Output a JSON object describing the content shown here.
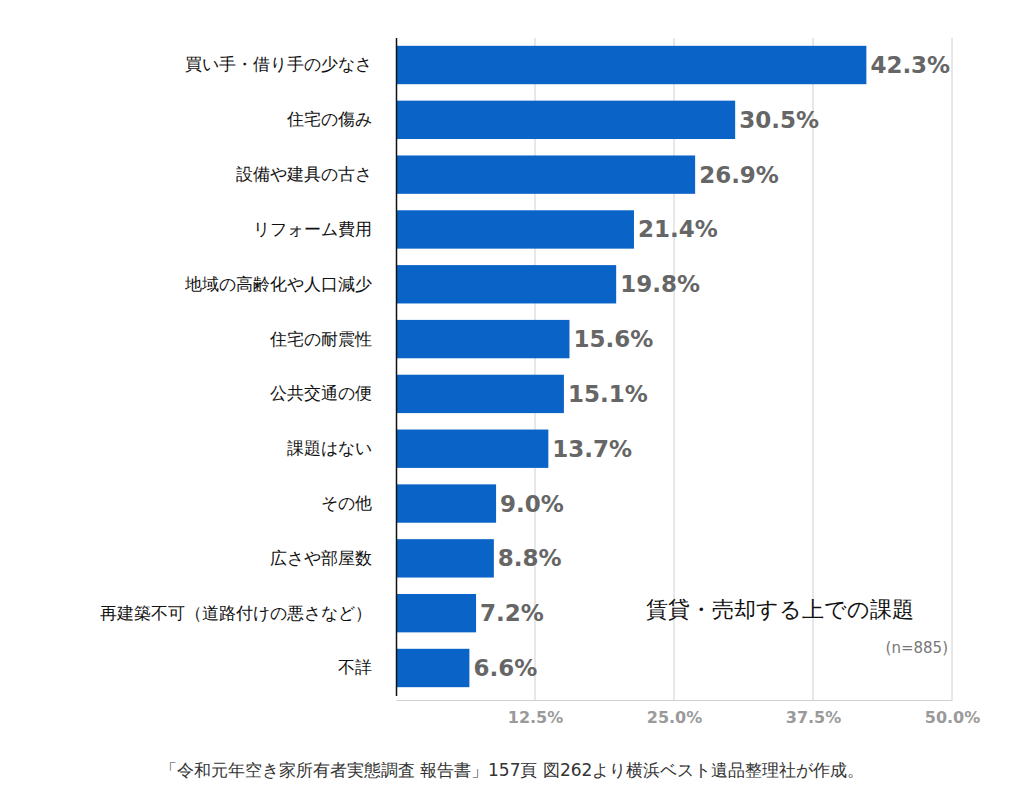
{
  "chart_data": {
    "type": "bar",
    "orientation": "horizontal",
    "title": "賃貸・売却する上での課題",
    "subtitle": "(n=885)",
    "source": "「令和元年空き家所有者実態調査 報告書」157頁 図262より横浜ベスト遺品整理社が作成。",
    "categories": [
      "買い手・借り手の少なさ",
      "住宅の傷み",
      "設備や建具の古さ",
      "リフォーム費用",
      "地域の高齢化や人口減少",
      "住宅の耐震性",
      "公共交通の便",
      "課題はない",
      "その他",
      "広さや部屋数",
      "再建築不可（道路付けの悪さなど）",
      "不詳"
    ],
    "values": [
      42.3,
      30.5,
      26.9,
      21.4,
      19.8,
      15.6,
      15.1,
      13.7,
      9.0,
      8.8,
      7.2,
      6.6
    ],
    "value_labels": [
      "42.3%",
      "30.5%",
      "26.9%",
      "21.4%",
      "19.8%",
      "15.6%",
      "15.1%",
      "13.7%",
      "9.0%",
      "8.8%",
      "7.2%",
      "6.6%"
    ],
    "color": "#0a64c8",
    "xlim": [
      0,
      50
    ],
    "xticks": [
      {
        "value": 12.5,
        "label": "12.5%"
      },
      {
        "value": 25.0,
        "label": "25.0%"
      },
      {
        "value": 37.5,
        "label": "37.5%"
      },
      {
        "value": 50.0,
        "label": "50.0%"
      }
    ],
    "grid": true,
    "data_labels": true
  }
}
